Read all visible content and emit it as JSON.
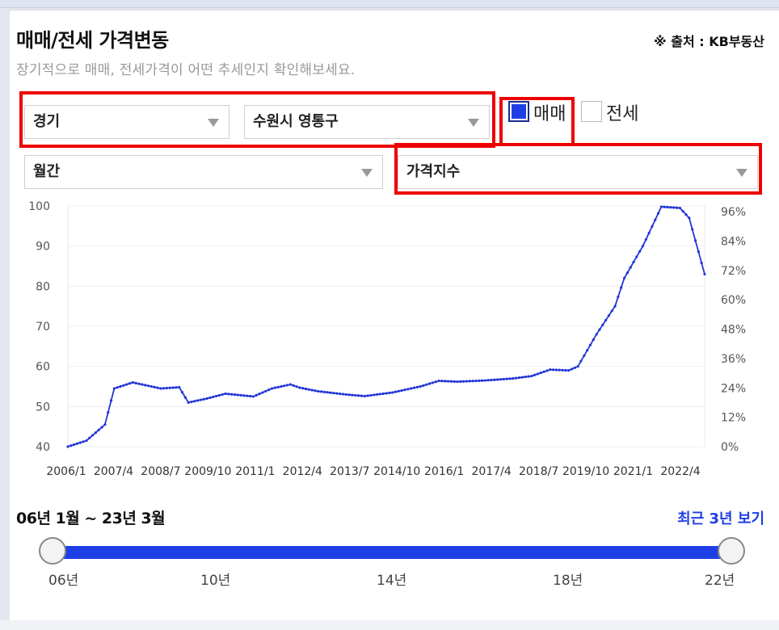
{
  "header": {
    "title": "매매/전세 가격변동",
    "source": "※ 출처 : KB부동산",
    "subtitle": "장기적으로 매매, 전세가격이 어떤 추세인지 확인해보세요."
  },
  "filters": {
    "region": "경기",
    "district": "수원시 영통구",
    "period": "월간",
    "metric": "가격지수"
  },
  "checkboxes": [
    {
      "label": "매매",
      "checked": true
    },
    {
      "label": "전세",
      "checked": false
    }
  ],
  "colors": {
    "accent": "#1f3fe6",
    "highlight": "#e00000"
  },
  "chart_data": {
    "type": "line",
    "x_tick_labels": [
      "2006/1",
      "2007/4",
      "2008/7",
      "2009/10",
      "2011/1",
      "2012/4",
      "2013/7",
      "2014/10",
      "2016/1",
      "2017/4",
      "2018/7",
      "2019/10",
      "2021/1",
      "2022/4"
    ],
    "y_left_ticks": [
      "100",
      "90",
      "80",
      "70",
      "60",
      "50",
      "40"
    ],
    "y_right_ticks": [
      "96%",
      "84%",
      "72%",
      "60%",
      "48%",
      "36%",
      "24%",
      "12%",
      "0%"
    ],
    "ylim": [
      40,
      100
    ],
    "series": [
      {
        "color": "#2236d6",
        "x": [
          "2006/1",
          "2006/7",
          "2007/1",
          "2007/4",
          "2007/10",
          "2008/4",
          "2008/7",
          "2009/1",
          "2009/4",
          "2009/10",
          "2010/4",
          "2011/1",
          "2011/7",
          "2012/1",
          "2012/4",
          "2012/10",
          "2013/7",
          "2014/1",
          "2014/10",
          "2015/7",
          "2016/1",
          "2016/7",
          "2017/4",
          "2018/1",
          "2018/7",
          "2019/1",
          "2019/7",
          "2019/10",
          "2020/4",
          "2020/10",
          "2021/1",
          "2021/7",
          "2022/1",
          "2022/7",
          "2022/10",
          "2023/3"
        ],
        "values": [
          40.0,
          41.5,
          45.5,
          54.5,
          56.0,
          55.0,
          54.5,
          54.8,
          51.0,
          52.0,
          53.2,
          52.5,
          54.5,
          55.5,
          54.7,
          53.8,
          53.0,
          52.6,
          53.5,
          55.0,
          56.4,
          56.2,
          56.5,
          57.0,
          57.6,
          59.2,
          59.0,
          60.0,
          68.0,
          75.0,
          82.0,
          90.0,
          99.8,
          99.5,
          97.0,
          83.0
        ]
      }
    ]
  },
  "range_slider": {
    "label": "06년 1월 ~ 23년 3월",
    "recent_button": "최근 3년 보기",
    "ticks": [
      "06년",
      "10년",
      "14년",
      "18년",
      "22년"
    ],
    "start_fraction": 0.0,
    "end_fraction": 1.0
  }
}
